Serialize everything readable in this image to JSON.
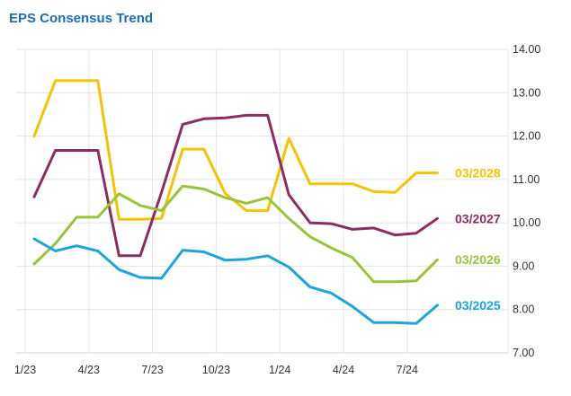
{
  "title": "EPS Consensus Trend",
  "chart_data": {
    "type": "line",
    "title": "EPS Consensus Trend",
    "xlabel": "",
    "ylabel": "",
    "ylim": [
      7.0,
      14.0
    ],
    "yticks": [
      "7.00",
      "8.00",
      "9.00",
      "10.00",
      "11.00",
      "12.00",
      "13.00",
      "14.00"
    ],
    "xticks": [
      "1/23",
      "4/23",
      "7/23",
      "10/23",
      "1/24",
      "4/24",
      "7/24"
    ],
    "x": [
      "1/23",
      "2/23",
      "3/23",
      "4/23",
      "5/23",
      "6/23",
      "7/23",
      "8/23",
      "9/23",
      "10/23",
      "11/23",
      "12/23",
      "1/24",
      "2/24",
      "3/24",
      "4/24",
      "5/24",
      "6/24",
      "7/24",
      "8/24"
    ],
    "grid": true,
    "legend": "right, labels at line ends",
    "series": [
      {
        "name": "03/2028",
        "color": "#f5c400",
        "values": [
          12.0,
          13.28,
          13.28,
          13.28,
          10.08,
          10.08,
          10.1,
          11.7,
          11.7,
          10.68,
          10.28,
          10.28,
          11.95,
          10.9,
          10.9,
          10.9,
          10.72,
          10.7,
          11.15,
          11.15
        ]
      },
      {
        "name": "03/2027",
        "color": "#8c2d62",
        "values": [
          10.6,
          11.67,
          11.67,
          11.67,
          9.24,
          9.24,
          10.7,
          12.27,
          12.4,
          12.42,
          12.48,
          12.48,
          10.65,
          10.0,
          9.98,
          9.85,
          9.88,
          9.72,
          9.76,
          10.1
        ]
      },
      {
        "name": "03/2026",
        "color": "#9ac33c",
        "values": [
          9.05,
          9.52,
          10.13,
          10.13,
          10.67,
          10.4,
          10.28,
          10.85,
          10.78,
          10.58,
          10.45,
          10.58,
          10.1,
          9.68,
          9.42,
          9.2,
          8.64,
          8.64,
          8.66,
          9.15
        ]
      },
      {
        "name": "03/2025",
        "color": "#1aa5dd",
        "values": [
          9.63,
          9.35,
          9.47,
          9.35,
          8.92,
          8.74,
          8.72,
          9.37,
          9.33,
          9.14,
          9.16,
          9.24,
          8.98,
          8.52,
          8.38,
          8.07,
          7.7,
          7.7,
          7.68,
          8.1
        ]
      }
    ]
  }
}
